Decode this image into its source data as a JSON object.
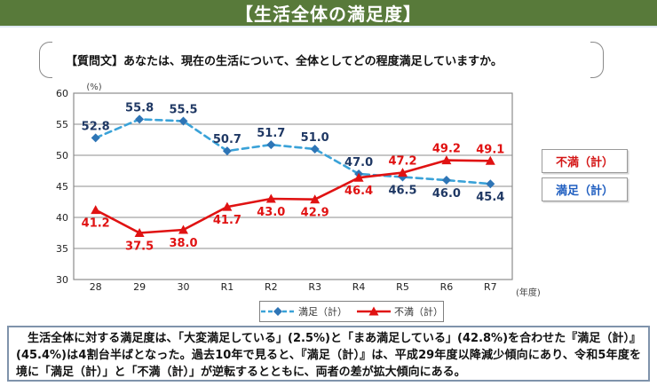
{
  "header": {
    "title": "【生活全体の満足度】",
    "bg_color": "#587a3a"
  },
  "question": {
    "text": "【質問文】あなたは、現在の生活について、全体としてどの程度満足していますか。"
  },
  "side_labels": {
    "dissatisfied": "不満（計）",
    "satisfied": "満足（計）"
  },
  "chart_data": {
    "type": "line",
    "title": "",
    "categories": [
      "28",
      "29",
      "30",
      "R1",
      "R2",
      "R3",
      "R4",
      "R5",
      "R6",
      "R7"
    ],
    "series": [
      {
        "name": "満足（計）",
        "values": [
          52.8,
          55.8,
          55.5,
          50.7,
          51.7,
          51.0,
          47.0,
          46.5,
          46.0,
          45.4
        ],
        "line_color": "#3aa2d8",
        "marker_color": "#2e75b6",
        "label_color": "#1f3864",
        "line_style": "dashed",
        "marker": "diamond",
        "label_side": [
          "above",
          "above",
          "above",
          "above",
          "above",
          "above",
          "above",
          "below",
          "below",
          "below"
        ]
      },
      {
        "name": "不満（計）",
        "values": [
          41.2,
          37.5,
          38.0,
          41.7,
          43.0,
          42.9,
          46.4,
          47.2,
          49.2,
          49.1
        ],
        "line_color": "#e01212",
        "marker_color": "#e01212",
        "label_color": "#e01212",
        "line_style": "solid",
        "marker": "triangle",
        "label_side": [
          "below",
          "below",
          "below",
          "below",
          "below",
          "below",
          "below",
          "above",
          "above",
          "above"
        ]
      }
    ],
    "ylim": [
      30,
      60
    ],
    "ytick_step": 5,
    "y_unit_label": "(%)",
    "x_unit_label": "(年度)",
    "grid": true,
    "grid_color": "#8c8c8c",
    "axis_text_color": "#222",
    "legend_position": "bottom"
  },
  "summary": {
    "text": "　生活全体に対する満足度は、「大変満足している」(2.5%)と「まあ満足している」(42.8%)を合わせた『満足（計）』(45.4%)は4割台半ばとなった。過去10年で見ると、『満足（計）』は、平成29年度以降減少傾向にあり、令和5年度を境に「満足（計）」と「不満（計）」が逆転するとともに、両者の差が拡大傾向にある。"
  }
}
